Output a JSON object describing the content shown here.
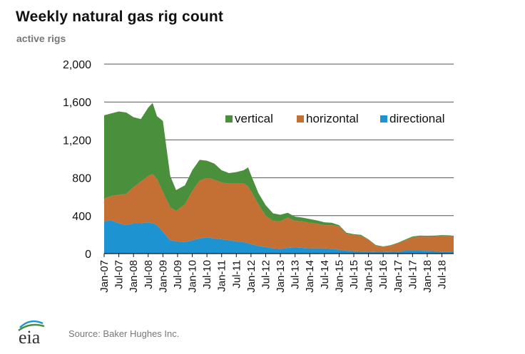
{
  "title": "Weekly natural gas rig count",
  "subtitle": "active rigs",
  "source": "Source: Baker Hughes Inc.",
  "logo_text": "eia",
  "colors": {
    "vertical": "#4a8f3c",
    "horizontal": "#c46f34",
    "directional": "#1e93d2",
    "grid": "#555555"
  },
  "chart_data": {
    "type": "area",
    "stacked": true,
    "ylim": [
      0,
      2000
    ],
    "yticks": [
      0,
      400,
      800,
      1200,
      1600,
      2000
    ],
    "ytick_labels": [
      "0",
      "400",
      "800",
      "1,200",
      "1,600",
      "2,000"
    ],
    "xticks": [
      "Jan-07",
      "Jul-07",
      "Jan-08",
      "Jul-08",
      "Jan-09",
      "Jul-09",
      "Jan-10",
      "Jul-10",
      "Jan-11",
      "Jul-11",
      "Jan-12",
      "Jul-12",
      "Jan-13",
      "Jul-13",
      "Jan-14",
      "Jul-14",
      "Jan-15",
      "Jul-15",
      "Jan-16",
      "Jul-16",
      "Jan-17",
      "Jul-17",
      "Jan-18",
      "Jul-18"
    ],
    "legend_position": "upper-right",
    "x": [
      2007.0,
      2007.25,
      2007.5,
      2007.75,
      2008.0,
      2008.25,
      2008.5,
      2008.65,
      2008.8,
      2009.0,
      2009.25,
      2009.45,
      2009.75,
      2010.0,
      2010.25,
      2010.5,
      2010.75,
      2011.0,
      2011.25,
      2011.5,
      2011.75,
      2011.9,
      2012.0,
      2012.25,
      2012.5,
      2012.75,
      2013.0,
      2013.25,
      2013.5,
      2013.75,
      2014.0,
      2014.25,
      2014.5,
      2014.75,
      2015.0,
      2015.25,
      2015.5,
      2015.75,
      2016.0,
      2016.25,
      2016.5,
      2016.75,
      2017.0,
      2017.25,
      2017.5,
      2017.75,
      2018.0,
      2018.25,
      2018.5,
      2018.75,
      2018.9
    ],
    "series": [
      {
        "name": "directional",
        "values": [
          340,
          350,
          320,
          300,
          320,
          320,
          330,
          320,
          300,
          230,
          140,
          130,
          120,
          140,
          160,
          170,
          160,
          150,
          140,
          130,
          120,
          110,
          100,
          80,
          70,
          55,
          50,
          60,
          65,
          60,
          55,
          55,
          55,
          50,
          40,
          30,
          25,
          22,
          20,
          15,
          15,
          18,
          20,
          30,
          30,
          30,
          28,
          25,
          20,
          20,
          18
        ]
      },
      {
        "name": "horizontal",
        "values": [
          240,
          260,
          300,
          330,
          380,
          440,
          490,
          520,
          490,
          420,
          350,
          320,
          400,
          520,
          610,
          630,
          620,
          600,
          600,
          610,
          620,
          600,
          560,
          440,
          330,
          290,
          290,
          320,
          280,
          280,
          270,
          260,
          245,
          250,
          250,
          180,
          170,
          165,
          125,
          70,
          55,
          65,
          90,
          110,
          140,
          150,
          150,
          155,
          165,
          165,
          162
        ]
      },
      {
        "name": "vertical",
        "values": [
          880,
          870,
          880,
          860,
          740,
          660,
          720,
          750,
          660,
          750,
          330,
          220,
          200,
          220,
          220,
          180,
          170,
          130,
          110,
          120,
          140,
          200,
          170,
          120,
          110,
          80,
          70,
          50,
          45,
          40,
          40,
          35,
          30,
          25,
          10,
          10,
          10,
          10,
          5,
          5,
          5,
          5,
          5,
          8,
          10,
          10,
          10,
          10,
          10,
          8,
          8
        ]
      }
    ]
  }
}
